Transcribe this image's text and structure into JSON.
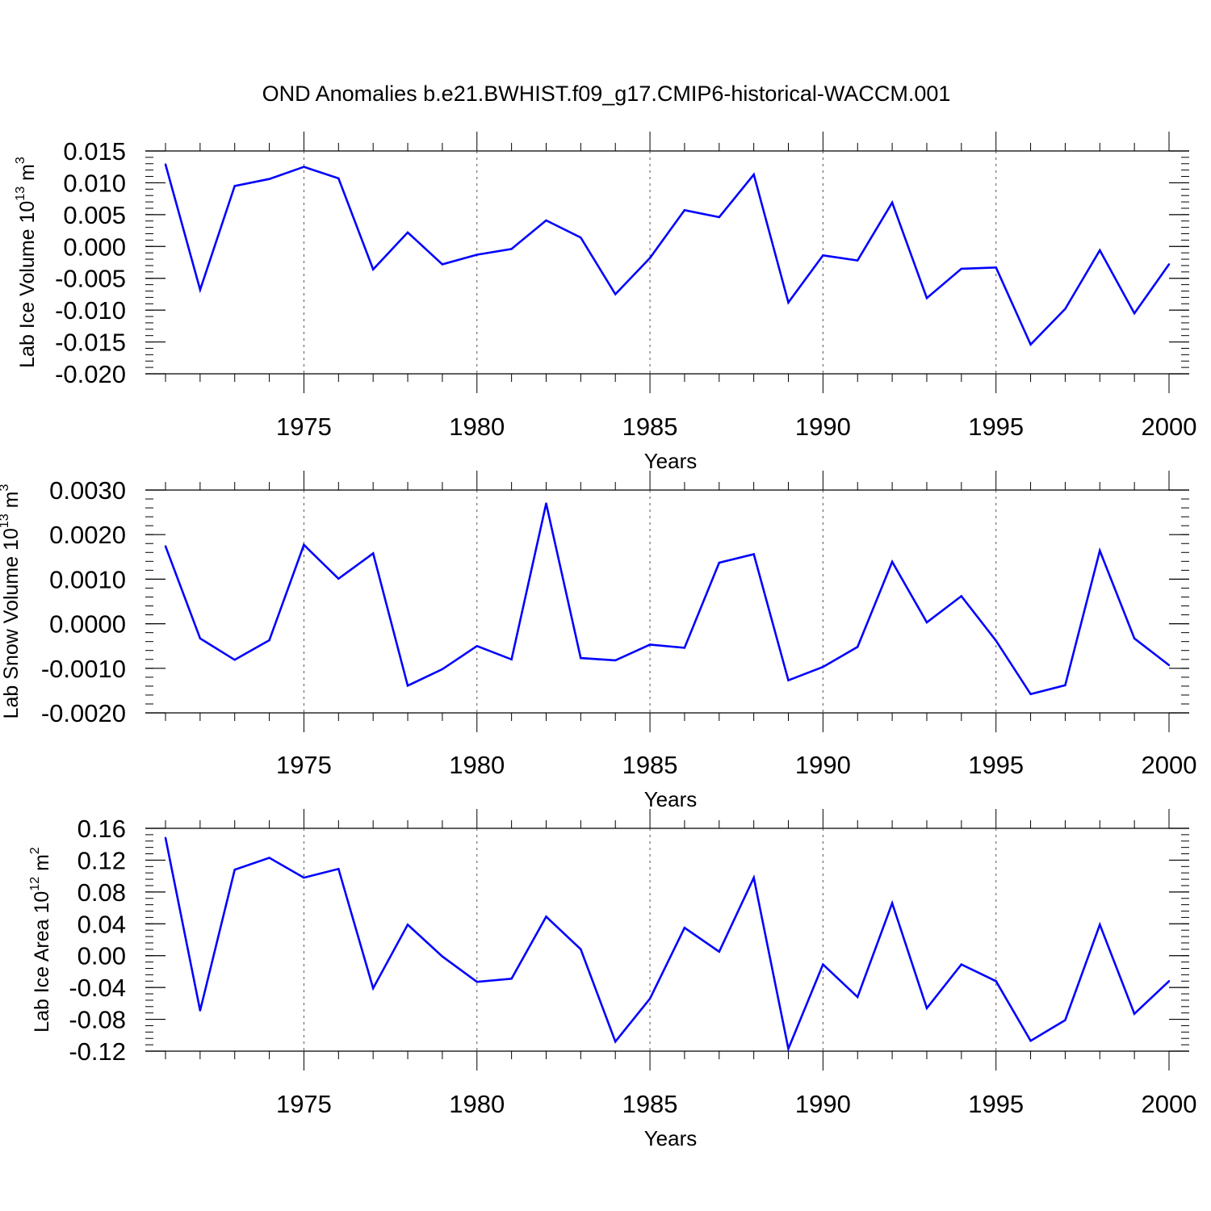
{
  "title": "OND Anomalies b.e21.BWHIST.f09_g17.CMIP6-historical-WACCM.001",
  "line_color": "#0000ff",
  "chart_data": [
    {
      "type": "line",
      "ylabel": {
        "text": "Lab Ice Volume 10",
        "sup_exp": "13",
        "unit": " m",
        "sup_unit": "3"
      },
      "xlabel": "Years",
      "xlim": [
        1971,
        2000
      ],
      "ylim": [
        -0.02,
        0.015
      ],
      "yticks": [
        -0.02,
        -0.015,
        -0.01,
        -0.005,
        0.0,
        0.005,
        0.01,
        0.015
      ],
      "ytick_labels": [
        "-0.020",
        "-0.015",
        "-0.010",
        "-0.005",
        "0.000",
        "0.005",
        "0.010",
        "0.015"
      ],
      "yminor_step": 0.001,
      "xticks": [
        1975,
        1980,
        1985,
        1990,
        1995,
        2000
      ],
      "xtick_labels": [
        "1975",
        "1980",
        "1985",
        "1990",
        "1995",
        "2000"
      ],
      "grid_x": [
        1975,
        1980,
        1985,
        1990,
        1995
      ],
      "x": [
        1971,
        1972,
        1973,
        1974,
        1975,
        1976,
        1977,
        1978,
        1979,
        1980,
        1981,
        1982,
        1983,
        1984,
        1985,
        1986,
        1987,
        1988,
        1989,
        1990,
        1991,
        1992,
        1993,
        1994,
        1995,
        1996,
        1997,
        1998,
        1999,
        2000
      ],
      "values": [
        0.0129,
        -0.0068,
        0.0095,
        0.0106,
        0.0125,
        0.0107,
        -0.0036,
        0.0022,
        -0.0028,
        -0.0013,
        -0.0004,
        0.0041,
        0.0014,
        -0.0075,
        -0.0018,
        0.0057,
        0.0046,
        0.0113,
        -0.0088,
        -0.0014,
        -0.0022,
        0.0069,
        -0.0081,
        -0.0035,
        -0.0033,
        -0.0154,
        -0.0098,
        -0.0006,
        -0.0105,
        -0.0028
      ]
    },
    {
      "type": "line",
      "ylabel": {
        "text": "Lab Snow Volume 10",
        "sup_exp": "13",
        "unit": " m",
        "sup_unit": "3"
      },
      "xlabel": "Years",
      "xlim": [
        1971,
        2000
      ],
      "ylim": [
        -0.002,
        0.003
      ],
      "yticks": [
        -0.002,
        -0.001,
        0.0,
        0.001,
        0.002,
        0.003
      ],
      "ytick_labels": [
        "-0.0020",
        "-0.0010",
        "0.0000",
        "0.0010",
        "0.0020",
        "0.0030"
      ],
      "yminor_step": 0.0002,
      "xticks": [
        1975,
        1980,
        1985,
        1990,
        1995,
        2000
      ],
      "xtick_labels": [
        "1975",
        "1980",
        "1985",
        "1990",
        "1995",
        "2000"
      ],
      "grid_x": [
        1975,
        1980,
        1985,
        1990,
        1995
      ],
      "x": [
        1971,
        1972,
        1973,
        1974,
        1975,
        1976,
        1977,
        1978,
        1979,
        1980,
        1981,
        1982,
        1983,
        1984,
        1985,
        1986,
        1987,
        1988,
        1989,
        1990,
        1991,
        1992,
        1993,
        1994,
        1995,
        1996,
        1997,
        1998,
        1999,
        2000
      ],
      "values": [
        0.00174,
        -0.00033,
        -0.00081,
        -0.00037,
        0.00177,
        0.00101,
        0.00158,
        -0.00139,
        -0.00102,
        -0.0005,
        -0.0008,
        0.0027,
        -0.00077,
        -0.00082,
        -0.00047,
        -0.00054,
        0.00137,
        0.00156,
        -0.00127,
        -0.00097,
        -0.00052,
        0.00139,
        3e-05,
        0.00062,
        -0.00038,
        -0.00158,
        -0.00138,
        0.00164,
        -0.00033,
        -0.00093
      ]
    },
    {
      "type": "line",
      "ylabel": {
        "text": "Lab Ice Area 10",
        "sup_exp": "12",
        "unit": " m",
        "sup_unit": "2"
      },
      "xlabel": "Years",
      "xlim": [
        1971,
        2000
      ],
      "ylim": [
        -0.12,
        0.16
      ],
      "yticks": [
        -0.12,
        -0.08,
        -0.04,
        0.0,
        0.04,
        0.08,
        0.12,
        0.16
      ],
      "ytick_labels": [
        "-0.12",
        "-0.08",
        "-0.04",
        "0.00",
        "0.04",
        "0.08",
        "0.12",
        "0.16"
      ],
      "yminor_step": 0.008,
      "xticks": [
        1975,
        1980,
        1985,
        1990,
        1995,
        2000
      ],
      "xtick_labels": [
        "1975",
        "1980",
        "1985",
        "1990",
        "1995",
        "2000"
      ],
      "grid_x": [
        1975,
        1980,
        1985,
        1990,
        1995
      ],
      "x": [
        1971,
        1972,
        1973,
        1974,
        1975,
        1976,
        1977,
        1978,
        1979,
        1980,
        1981,
        1982,
        1983,
        1984,
        1985,
        1986,
        1987,
        1988,
        1989,
        1990,
        1991,
        1992,
        1993,
        1994,
        1995,
        1996,
        1997,
        1998,
        1999,
        2000
      ],
      "values": [
        0.148,
        -0.069,
        0.108,
        0.123,
        0.098,
        0.109,
        -0.041,
        0.039,
        -0.001,
        -0.033,
        -0.029,
        0.049,
        0.008,
        -0.108,
        -0.054,
        0.035,
        0.005,
        0.098,
        -0.117,
        -0.011,
        -0.052,
        0.066,
        -0.066,
        -0.011,
        -0.032,
        -0.107,
        -0.081,
        0.039,
        -0.073,
        -0.032
      ]
    }
  ]
}
